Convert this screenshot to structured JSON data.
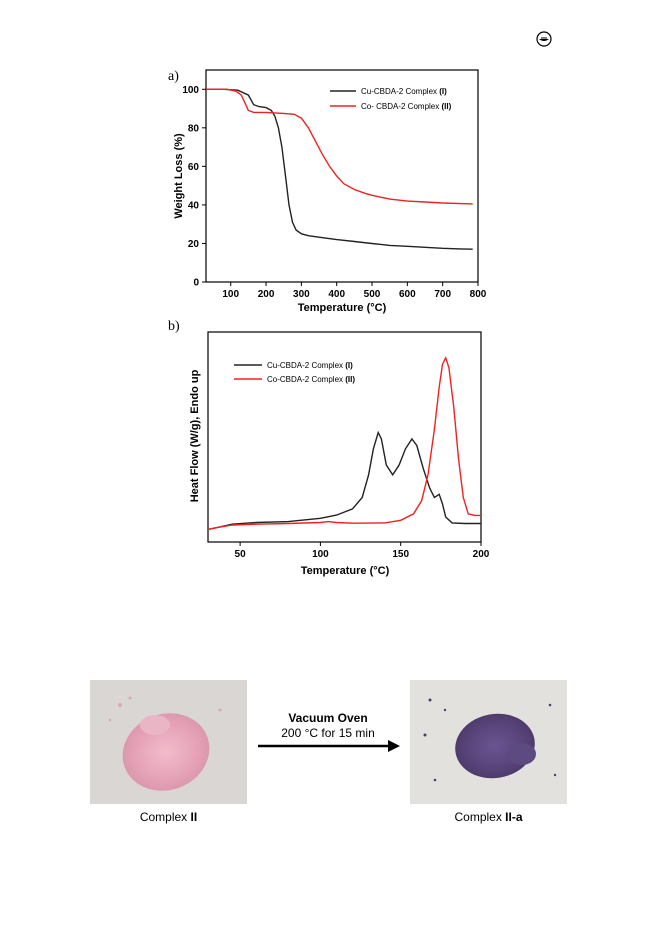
{
  "page": {
    "icon": "circle-logo-icon"
  },
  "chart_data": [
    {
      "type": "line",
      "panel_label": "a)",
      "xlabel": "Temperature (°C)",
      "ylabel": "Weight Loss (%)",
      "xlim": [
        30,
        800
      ],
      "ylim": [
        0,
        110
      ],
      "x_ticks": [
        100,
        200,
        300,
        400,
        500,
        600,
        700,
        800
      ],
      "y_ticks": [
        0,
        20,
        40,
        60,
        80,
        100
      ],
      "legend_position": "top-right",
      "series": [
        {
          "name": "Cu-CBDA-2 Complex",
          "name_suffix": "(I)",
          "color": "#222222",
          "points": [
            [
              30,
              100
            ],
            [
              80,
              100
            ],
            [
              120,
              99.5
            ],
            [
              150,
              97
            ],
            [
              165,
              92
            ],
            [
              180,
              91
            ],
            [
              200,
              90.5
            ],
            [
              215,
              89
            ],
            [
              225,
              86
            ],
            [
              235,
              80
            ],
            [
              245,
              70
            ],
            [
              255,
              55
            ],
            [
              265,
              40
            ],
            [
              275,
              31
            ],
            [
              285,
              27
            ],
            [
              300,
              25
            ],
            [
              320,
              24
            ],
            [
              360,
              23
            ],
            [
              400,
              22
            ],
            [
              450,
              21
            ],
            [
              500,
              20
            ],
            [
              550,
              19
            ],
            [
              600,
              18.5
            ],
            [
              650,
              18
            ],
            [
              700,
              17.5
            ],
            [
              750,
              17.2
            ],
            [
              785,
              17
            ]
          ]
        },
        {
          "name": "Co- CBDA-2 Complex",
          "name_suffix": "(II)",
          "color": "#ee2222",
          "points": [
            [
              30,
              100
            ],
            [
              90,
              100
            ],
            [
              115,
              99
            ],
            [
              130,
              97
            ],
            [
              140,
              93
            ],
            [
              150,
              89
            ],
            [
              165,
              88
            ],
            [
              200,
              88
            ],
            [
              250,
              87.5
            ],
            [
              280,
              87
            ],
            [
              300,
              85
            ],
            [
              320,
              80
            ],
            [
              340,
              73
            ],
            [
              360,
              66
            ],
            [
              380,
              60
            ],
            [
              400,
              55
            ],
            [
              420,
              51
            ],
            [
              450,
              48
            ],
            [
              480,
              46
            ],
            [
              500,
              45
            ],
            [
              550,
              43
            ],
            [
              600,
              42
            ],
            [
              650,
              41.5
            ],
            [
              700,
              41
            ],
            [
              785,
              40.5
            ]
          ]
        }
      ]
    },
    {
      "type": "line",
      "panel_label": "b)",
      "xlabel": "Temperature (°C)",
      "ylabel": "Heat Flow (W/g), Endo up",
      "xlim": [
        30,
        200
      ],
      "x_ticks": [
        50,
        100,
        150,
        200
      ],
      "legend_position": "top-left",
      "series": [
        {
          "name": "Cu-CBDA-2 Complex",
          "name_suffix": "(I)",
          "color": "#222222",
          "points": [
            [
              30,
              0.2
            ],
            [
              36,
              0.8
            ],
            [
              45,
              1.8
            ],
            [
              60,
              2.3
            ],
            [
              80,
              2.6
            ],
            [
              100,
              3.6
            ],
            [
              110,
              4.6
            ],
            [
              120,
              6.5
            ],
            [
              126,
              10
            ],
            [
              130,
              17
            ],
            [
              133,
              25
            ],
            [
              136,
              30
            ],
            [
              138,
              28
            ],
            [
              141,
              20
            ],
            [
              145,
              17
            ],
            [
              149,
              20
            ],
            [
              153,
              25
            ],
            [
              157,
              28
            ],
            [
              160,
              26
            ],
            [
              164,
              19
            ],
            [
              168,
              13
            ],
            [
              171,
              10
            ],
            [
              174,
              11
            ],
            [
              176,
              8
            ],
            [
              178,
              4
            ],
            [
              182,
              2.2
            ],
            [
              190,
              2.0
            ],
            [
              200,
              2.0
            ]
          ]
        },
        {
          "name": "Co-CBDA-2 Complex",
          "name_suffix": "(II)",
          "color": "#ee2222",
          "points": [
            [
              30,
              0.2
            ],
            [
              36,
              0.8
            ],
            [
              45,
              1.5
            ],
            [
              60,
              1.8
            ],
            [
              80,
              2.0
            ],
            [
              100,
              2.3
            ],
            [
              105,
              2.6
            ],
            [
              110,
              2.3
            ],
            [
              120,
              2.1
            ],
            [
              140,
              2.2
            ],
            [
              150,
              3.0
            ],
            [
              158,
              5.0
            ],
            [
              163,
              9
            ],
            [
              167,
              17
            ],
            [
              171,
              31
            ],
            [
              174,
              44
            ],
            [
              176,
              51
            ],
            [
              178,
              53
            ],
            [
              180,
              50
            ],
            [
              183,
              38
            ],
            [
              186,
              22
            ],
            [
              189,
              10
            ],
            [
              192,
              5
            ],
            [
              196,
              4.5
            ],
            [
              200,
              4.5
            ]
          ]
        }
      ]
    }
  ],
  "photos": {
    "left": {
      "caption_text": "Complex ",
      "caption_bold": "II",
      "color": "#e8a6bc"
    },
    "right": {
      "caption_text": "Complex ",
      "caption_bold": "II-a",
      "color": "#5b4683"
    }
  },
  "arrow": {
    "title": "Vacuum Oven",
    "subtitle": "200 °C for 15 min"
  }
}
